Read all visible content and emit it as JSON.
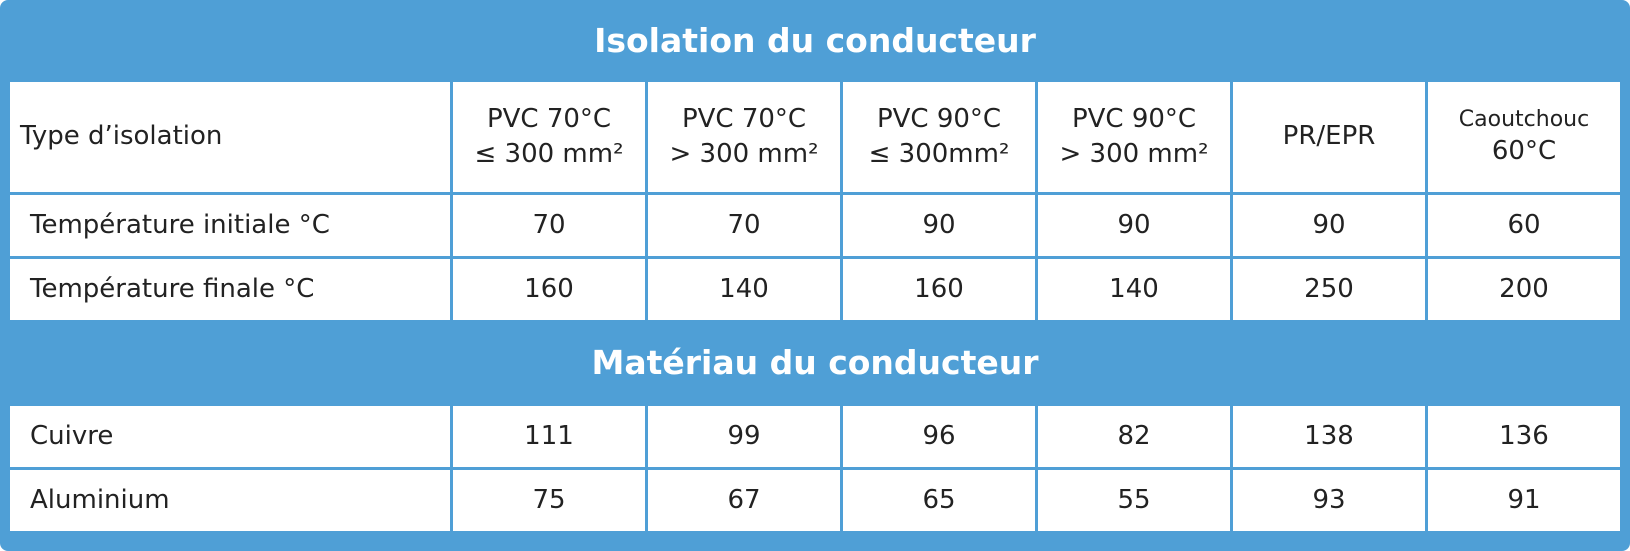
{
  "header": {
    "title": "Isolation du conducteur"
  },
  "table": {
    "columns": [
      "Type d’isolation",
      [
        "PVC 70°C",
        "≤ 300 mm²"
      ],
      [
        "PVC 70°C",
        "> 300 mm²"
      ],
      [
        "PVC 90°C",
        "≤ 300mm²"
      ],
      [
        "PVC 90°C",
        "> 300 mm²"
      ],
      "PR/EPR",
      [
        "Caoutchouc",
        "60°C"
      ]
    ],
    "rows": [
      [
        "Température initiale °C",
        70,
        70,
        90,
        90,
        90,
        60
      ],
      [
        "Température finale °C",
        160,
        140,
        160,
        140,
        250,
        200
      ]
    ]
  },
  "section": {
    "title": "Matériau du conducteur"
  },
  "material_table": {
    "rows": [
      [
        "Cuivre",
        111,
        99,
        96,
        82,
        138,
        136
      ],
      [
        "Aluminium",
        75,
        67,
        65,
        55,
        93,
        91
      ]
    ]
  }
}
